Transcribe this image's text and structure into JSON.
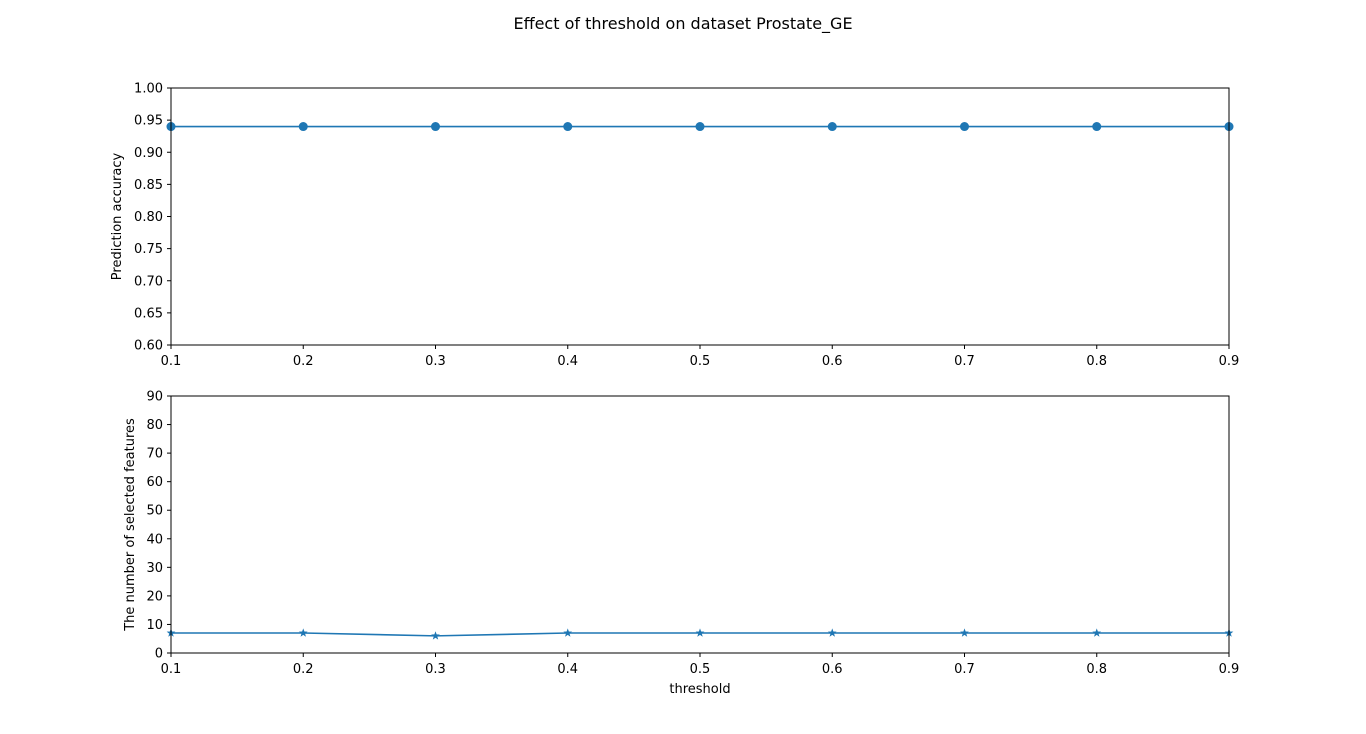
{
  "figure": {
    "title": "Effect of threshold on dataset Prostate_GE"
  },
  "colors": {
    "series": "#1f77b4",
    "axis": "#000000",
    "background": "#ffffff"
  },
  "chart_data": [
    {
      "type": "line",
      "marker": "circle",
      "x": [
        0.1,
        0.2,
        0.3,
        0.4,
        0.5,
        0.6,
        0.7,
        0.8,
        0.9
      ],
      "values": [
        0.94,
        0.94,
        0.94,
        0.94,
        0.94,
        0.94,
        0.94,
        0.94,
        0.94
      ],
      "xlabel": "",
      "ylabel": "Prediction accuracy",
      "xlim": [
        0.1,
        0.9
      ],
      "ylim": [
        0.6,
        1.0
      ],
      "xticks": [
        "0.1",
        "0.2",
        "0.3",
        "0.4",
        "0.5",
        "0.6",
        "0.7",
        "0.8",
        "0.9"
      ],
      "yticks": [
        "0.60",
        "0.65",
        "0.70",
        "0.75",
        "0.80",
        "0.85",
        "0.90",
        "0.95",
        "1.00"
      ],
      "grid": false
    },
    {
      "type": "line",
      "marker": "star",
      "x": [
        0.1,
        0.2,
        0.3,
        0.4,
        0.5,
        0.6,
        0.7,
        0.8,
        0.9
      ],
      "values": [
        7,
        7,
        6,
        7,
        7,
        7,
        7,
        7,
        7
      ],
      "xlabel": "threshold",
      "ylabel": "The number of selected features",
      "xlim": [
        0.1,
        0.9
      ],
      "ylim": [
        0,
        90
      ],
      "xticks": [
        "0.1",
        "0.2",
        "0.3",
        "0.4",
        "0.5",
        "0.6",
        "0.7",
        "0.8",
        "0.9"
      ],
      "yticks": [
        "0",
        "10",
        "20",
        "30",
        "40",
        "50",
        "60",
        "70",
        "80",
        "90"
      ],
      "grid": false
    }
  ]
}
